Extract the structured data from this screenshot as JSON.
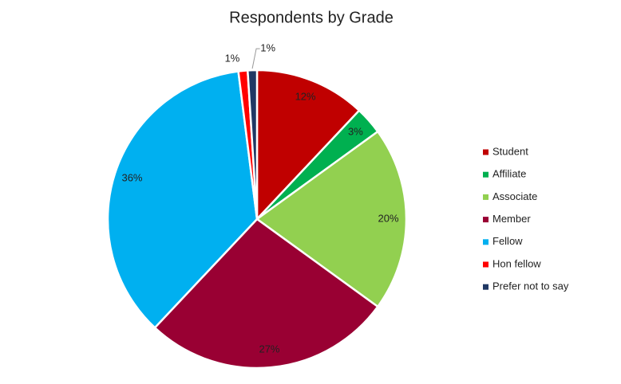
{
  "chart_data": {
    "type": "pie",
    "title": "Respondents by Grade",
    "categories": [
      "Student",
      "Affiliate",
      "Associate",
      "Member",
      "Fellow",
      "Hon fellow",
      "Prefer not to say"
    ],
    "values": [
      12,
      3,
      20,
      27,
      36,
      1,
      1
    ],
    "value_labels": [
      "12%",
      "3%",
      "20%",
      "27%",
      "36%",
      "1%",
      "1%"
    ],
    "colors": [
      "#c00000",
      "#00b050",
      "#92d050",
      "#990033",
      "#00b0f0",
      "#ff0000",
      "#203864"
    ],
    "legend": "right"
  }
}
